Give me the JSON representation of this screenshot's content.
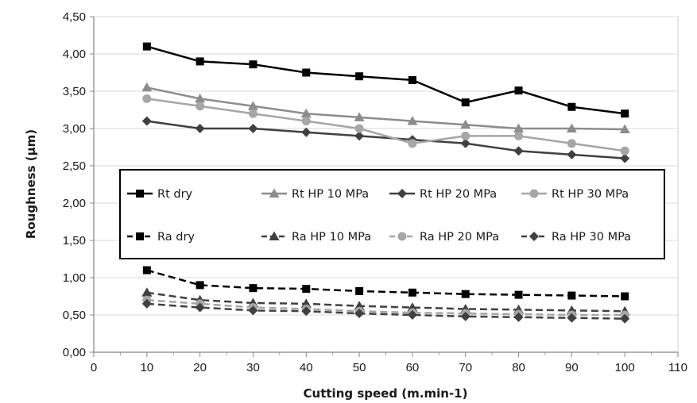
{
  "chart_data": {
    "type": "line",
    "xlabel": "Cutting speed (m.min-1)",
    "ylabel": "Roughness (µm)",
    "xlim": [
      0,
      110
    ],
    "ylim": [
      0,
      4.5
    ],
    "x_ticks": [
      "0",
      "10",
      "20",
      "30",
      "40",
      "50",
      "60",
      "70",
      "80",
      "90",
      "100",
      "110"
    ],
    "y_ticks": [
      "0,00",
      "0,50",
      "1,00",
      "1,50",
      "2,00",
      "2,50",
      "3,00",
      "3,50",
      "4,00",
      "4,50"
    ],
    "grid": "horizontal",
    "legend_position": "center",
    "x": [
      10,
      20,
      30,
      40,
      50,
      60,
      70,
      80,
      90,
      100
    ],
    "series": [
      {
        "name": "Rt dry",
        "values": [
          4.1,
          3.9,
          3.86,
          3.75,
          3.7,
          3.65,
          3.35,
          3.51,
          3.29,
          3.2
        ],
        "color": "#000000",
        "marker": "square",
        "dash": "solid"
      },
      {
        "name": "Rt HP 10 MPa",
        "values": [
          3.55,
          3.4,
          3.3,
          3.2,
          3.15,
          3.1,
          3.05,
          3.0,
          3.0,
          2.99
        ],
        "color": "#8c8c8c",
        "marker": "triangle",
        "dash": "solid"
      },
      {
        "name": "Rt HP 20 MPa",
        "values": [
          3.1,
          3.0,
          3.0,
          2.95,
          2.9,
          2.85,
          2.8,
          2.7,
          2.65,
          2.6
        ],
        "color": "#404040",
        "marker": "diamond",
        "dash": "solid"
      },
      {
        "name": "Rt HP 30 MPa",
        "values": [
          3.4,
          3.3,
          3.2,
          3.1,
          3.0,
          2.8,
          2.9,
          2.9,
          2.8,
          2.7
        ],
        "color": "#a6a6a6",
        "marker": "circle",
        "dash": "solid"
      },
      {
        "name": "Ra dry",
        "values": [
          1.1,
          0.9,
          0.86,
          0.85,
          0.82,
          0.8,
          0.78,
          0.77,
          0.76,
          0.75
        ],
        "color": "#000000",
        "marker": "square",
        "dash": "dashed"
      },
      {
        "name": "Ra HP 10 MPa",
        "values": [
          0.8,
          0.7,
          0.66,
          0.65,
          0.62,
          0.6,
          0.58,
          0.57,
          0.56,
          0.55
        ],
        "color": "#404040",
        "marker": "triangle",
        "dash": "dashed"
      },
      {
        "name": "Ra HP 20 MPa",
        "values": [
          0.7,
          0.65,
          0.6,
          0.58,
          0.55,
          0.53,
          0.52,
          0.51,
          0.5,
          0.5
        ],
        "color": "#a6a6a6",
        "marker": "circle",
        "dash": "dashed"
      },
      {
        "name": "Ra HP 30 MPa",
        "values": [
          0.65,
          0.6,
          0.56,
          0.55,
          0.52,
          0.5,
          0.48,
          0.47,
          0.46,
          0.45
        ],
        "color": "#404040",
        "marker": "diamond",
        "dash": "dashed"
      }
    ]
  }
}
